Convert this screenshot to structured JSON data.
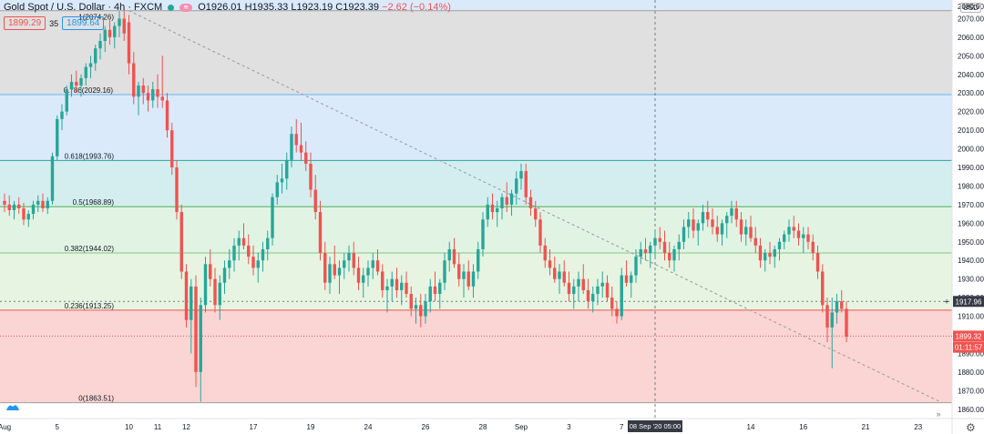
{
  "header": {
    "symbol": "Gold Spot / U.S. Dollar · 4h · FXCM",
    "ohlc": "O1926.01 H1935.33 L1923.19 C1923.39",
    "change": "−2.62 (−0.14%)",
    "bid": "1899.29",
    "spread": "35",
    "ask": "1899.64",
    "events_icon": "≋"
  },
  "currency": "USD",
  "chart_data": {
    "type": "candlestick",
    "ylim": [
      1855,
      2080
    ],
    "y_ticks": [
      2070,
      2060,
      2050,
      2040,
      2030,
      2020,
      2010,
      2000,
      1990,
      1980,
      1970,
      1960,
      1950,
      1940,
      1930,
      1920,
      1910,
      1900,
      1890,
      1880,
      1870,
      1860
    ],
    "y_tick_partial": "2080.00",
    "x_ticks": [
      {
        "label": "Aug",
        "i": 0
      },
      {
        "label": "5",
        "i": 11
      },
      {
        "label": "10",
        "i": 26
      },
      {
        "label": "11",
        "i": 32
      },
      {
        "label": "12",
        "i": 38
      },
      {
        "label": "17",
        "i": 52
      },
      {
        "label": "19",
        "i": 64
      },
      {
        "label": "24",
        "i": 76
      },
      {
        "label": "26",
        "i": 88
      },
      {
        "label": "28",
        "i": 100
      },
      {
        "label": "Sep",
        "i": 108
      },
      {
        "label": "3",
        "i": 118
      },
      {
        "label": "7",
        "i": 129
      },
      {
        "label": "14",
        "i": 156
      },
      {
        "label": "16",
        "i": 167
      },
      {
        "label": "21",
        "i": 180
      },
      {
        "label": "23",
        "i": 191
      }
    ],
    "crosshair_label": "08 Sep '20   05:00",
    "crosshair_i": 136,
    "fibonacci": {
      "high": 2074.26,
      "low": 1863.51,
      "levels": [
        {
          "ratio": "1",
          "price": 2074.26,
          "label": "1(2074.26)",
          "zone_color": "#e0e0e0",
          "line_color": "#9e9e9e"
        },
        {
          "ratio": "0.786",
          "price": 2029.16,
          "label": "0.786(2029.16)",
          "zone_color": "#dbeafb",
          "line_color": "#64b5f6"
        },
        {
          "ratio": "0.618",
          "price": 1993.76,
          "label": "0.618(1993.76)",
          "zone_color": "#d4eef0",
          "line_color": "#26a69a"
        },
        {
          "ratio": "0.5",
          "price": 1968.89,
          "label": "0.5(1968.89)",
          "zone_color": "#e1f4e4",
          "line_color": "#4caf50"
        },
        {
          "ratio": "0.382",
          "price": 1944.02,
          "label": "0.382(1944.02)",
          "zone_color": "#e6f4e1",
          "line_color": "#81c784"
        },
        {
          "ratio": "0.236",
          "price": 1913.25,
          "label": "0.236(1913.25)",
          "zone_color": "#fbd5d3",
          "line_color": "#ef5350"
        },
        {
          "ratio": "0",
          "price": 1863.51,
          "label": "0(1863.51)",
          "zone_color": "#fbd5d3",
          "line_color": "#9e9e9e"
        }
      ],
      "top_zone_color": "#dbeafb"
    },
    "trendline": {
      "from": {
        "i": 26,
        "price": 2074.26
      },
      "to": {
        "i": 196,
        "price": 1863.5
      }
    },
    "price_labels": [
      {
        "text": "1917.96",
        "price": 1917.96,
        "bg": "#363a45",
        "color": "#ffffff"
      },
      {
        "text": "1899.32",
        "price": 1899.32,
        "bg": "#ef5350",
        "color": "#ffffff"
      },
      {
        "text": "01:11:57",
        "price": 1893.3,
        "bg": "#ef5350",
        "color": "#ffffff"
      }
    ],
    "last_price": 1899.32,
    "candles": [
      [
        1972,
        1976,
        1966,
        1970
      ],
      [
        1970,
        1975,
        1964,
        1967
      ],
      [
        1967,
        1972,
        1962,
        1970
      ],
      [
        1970,
        1974,
        1965,
        1968
      ],
      [
        1968,
        1971,
        1959,
        1962
      ],
      [
        1962,
        1967,
        1958,
        1965
      ],
      [
        1965,
        1972,
        1962,
        1970
      ],
      [
        1970,
        1975,
        1966,
        1972
      ],
      [
        1972,
        1976,
        1966,
        1968
      ],
      [
        1968,
        1974,
        1965,
        1972
      ],
      [
        1972,
        1998,
        1970,
        1996
      ],
      [
        1996,
        2018,
        1994,
        2016
      ],
      [
        2016,
        2024,
        2010,
        2020
      ],
      [
        2020,
        2034,
        2018,
        2032
      ],
      [
        2032,
        2040,
        2028,
        2036
      ],
      [
        2036,
        2042,
        2030,
        2034
      ],
      [
        2034,
        2040,
        2028,
        2038
      ],
      [
        2038,
        2046,
        2034,
        2044
      ],
      [
        2044,
        2050,
        2038,
        2046
      ],
      [
        2046,
        2056,
        2042,
        2054
      ],
      [
        2054,
        2062,
        2048,
        2058
      ],
      [
        2058,
        2066,
        2052,
        2064
      ],
      [
        2064,
        2070,
        2056,
        2060
      ],
      [
        2060,
        2068,
        2054,
        2066
      ],
      [
        2066,
        2074,
        2060,
        2070
      ],
      [
        2070,
        2075,
        2058,
        2062
      ],
      [
        2068,
        2072,
        2040,
        2046
      ],
      [
        2046,
        2052,
        2024,
        2028
      ],
      [
        2028,
        2036,
        2018,
        2034
      ],
      [
        2034,
        2038,
        2024,
        2030
      ],
      [
        2030,
        2034,
        2020,
        2026
      ],
      [
        2026,
        2036,
        2022,
        2032
      ],
      [
        2032,
        2040,
        2022,
        2028
      ],
      [
        2028,
        2050,
        2022,
        2026
      ],
      [
        2026,
        2030,
        2006,
        2010
      ],
      [
        2010,
        2014,
        1986,
        1990
      ],
      [
        1990,
        1994,
        1962,
        1966
      ],
      [
        1966,
        1970,
        1930,
        1934
      ],
      [
        1934,
        1938,
        1904,
        1908
      ],
      [
        1908,
        1930,
        1890,
        1926
      ],
      [
        1926,
        1932,
        1872,
        1880
      ],
      [
        1880,
        1920,
        1864,
        1916
      ],
      [
        1916,
        1942,
        1912,
        1938
      ],
      [
        1938,
        1946,
        1926,
        1930
      ],
      [
        1930,
        1936,
        1912,
        1916
      ],
      [
        1916,
        1932,
        1908,
        1928
      ],
      [
        1928,
        1940,
        1922,
        1936
      ],
      [
        1936,
        1946,
        1930,
        1940
      ],
      [
        1940,
        1952,
        1934,
        1948
      ],
      [
        1948,
        1956,
        1940,
        1952
      ],
      [
        1952,
        1960,
        1946,
        1948
      ],
      [
        1948,
        1954,
        1938,
        1942
      ],
      [
        1942,
        1948,
        1932,
        1936
      ],
      [
        1936,
        1944,
        1928,
        1940
      ],
      [
        1940,
        1950,
        1934,
        1946
      ],
      [
        1946,
        1956,
        1940,
        1952
      ],
      [
        1952,
        1976,
        1948,
        1974
      ],
      [
        1974,
        1986,
        1970,
        1982
      ],
      [
        1982,
        1992,
        1976,
        1984
      ],
      [
        1984,
        1998,
        1978,
        1994
      ],
      [
        1994,
        2012,
        1990,
        2008
      ],
      [
        2008,
        2016,
        1998,
        2002
      ],
      [
        2002,
        2014,
        1994,
        1998
      ],
      [
        1998,
        2004,
        1988,
        1992
      ],
      [
        1992,
        1998,
        1974,
        1978
      ],
      [
        1978,
        1986,
        1962,
        1966
      ],
      [
        1966,
        1972,
        1940,
        1944
      ],
      [
        1944,
        1950,
        1924,
        1928
      ],
      [
        1928,
        1942,
        1922,
        1938
      ],
      [
        1938,
        1948,
        1930,
        1932
      ],
      [
        1932,
        1940,
        1922,
        1936
      ],
      [
        1936,
        1944,
        1930,
        1940
      ],
      [
        1940,
        1948,
        1934,
        1944
      ],
      [
        1944,
        1950,
        1932,
        1936
      ],
      [
        1936,
        1942,
        1924,
        1928
      ],
      [
        1928,
        1936,
        1920,
        1932
      ],
      [
        1932,
        1940,
        1926,
        1936
      ],
      [
        1936,
        1944,
        1930,
        1940
      ],
      [
        1940,
        1946,
        1932,
        1934
      ],
      [
        1934,
        1938,
        1920,
        1924
      ],
      [
        1924,
        1930,
        1912,
        1926
      ],
      [
        1926,
        1934,
        1918,
        1930
      ],
      [
        1930,
        1936,
        1920,
        1924
      ],
      [
        1924,
        1932,
        1916,
        1928
      ],
      [
        1928,
        1934,
        1920,
        1922
      ],
      [
        1922,
        1926,
        1910,
        1914
      ],
      [
        1914,
        1920,
        1906,
        1916
      ],
      [
        1916,
        1922,
        1904,
        1910
      ],
      [
        1910,
        1922,
        1906,
        1918
      ],
      [
        1918,
        1930,
        1912,
        1926
      ],
      [
        1926,
        1934,
        1918,
        1922
      ],
      [
        1922,
        1930,
        1914,
        1928
      ],
      [
        1928,
        1944,
        1924,
        1940
      ],
      [
        1940,
        1950,
        1934,
        1946
      ],
      [
        1946,
        1952,
        1936,
        1938
      ],
      [
        1938,
        1944,
        1926,
        1930
      ],
      [
        1930,
        1938,
        1920,
        1934
      ],
      [
        1934,
        1940,
        1924,
        1926
      ],
      [
        1926,
        1938,
        1920,
        1934
      ],
      [
        1934,
        1950,
        1930,
        1946
      ],
      [
        1946,
        1966,
        1942,
        1962
      ],
      [
        1962,
        1974,
        1958,
        1970
      ],
      [
        1970,
        1976,
        1962,
        1966
      ],
      [
        1966,
        1972,
        1958,
        1968
      ],
      [
        1968,
        1976,
        1962,
        1974
      ],
      [
        1974,
        1982,
        1966,
        1970
      ],
      [
        1970,
        1978,
        1964,
        1976
      ],
      [
        1976,
        1988,
        1970,
        1984
      ],
      [
        1984,
        1992,
        1978,
        1988
      ],
      [
        1988,
        1992,
        1970,
        1974
      ],
      [
        1974,
        1978,
        1964,
        1968
      ],
      [
        1968,
        1972,
        1958,
        1962
      ],
      [
        1962,
        1966,
        1944,
        1948
      ],
      [
        1948,
        1952,
        1936,
        1940
      ],
      [
        1940,
        1946,
        1932,
        1936
      ],
      [
        1936,
        1942,
        1928,
        1930
      ],
      [
        1930,
        1938,
        1922,
        1934
      ],
      [
        1934,
        1940,
        1926,
        1928
      ],
      [
        1928,
        1934,
        1918,
        1922
      ],
      [
        1922,
        1930,
        1914,
        1926
      ],
      [
        1926,
        1934,
        1918,
        1930
      ],
      [
        1930,
        1938,
        1922,
        1924
      ],
      [
        1924,
        1930,
        1914,
        1918
      ],
      [
        1918,
        1926,
        1912,
        1922
      ],
      [
        1922,
        1930,
        1916,
        1926
      ],
      [
        1926,
        1934,
        1920,
        1928
      ],
      [
        1928,
        1932,
        1918,
        1920
      ],
      [
        1920,
        1926,
        1910,
        1914
      ],
      [
        1914,
        1918,
        1906,
        1910
      ],
      [
        1910,
        1936,
        1908,
        1932
      ],
      [
        1932,
        1940,
        1926,
        1928
      ],
      [
        1928,
        1934,
        1920,
        1932
      ],
      [
        1932,
        1946,
        1928,
        1942
      ],
      [
        1942,
        1950,
        1938,
        1946
      ],
      [
        1946,
        1952,
        1940,
        1944
      ],
      [
        1944,
        1950,
        1936,
        1948
      ],
      [
        1948,
        1956,
        1942,
        1952
      ],
      [
        1952,
        1958,
        1946,
        1950
      ],
      [
        1950,
        1956,
        1940,
        1944
      ],
      [
        1944,
        1950,
        1936,
        1940
      ],
      [
        1940,
        1948,
        1934,
        1946
      ],
      [
        1946,
        1954,
        1940,
        1950
      ],
      [
        1950,
        1962,
        1946,
        1958
      ],
      [
        1958,
        1966,
        1952,
        1962
      ],
      [
        1962,
        1968,
        1952,
        1956
      ],
      [
        1956,
        1962,
        1948,
        1960
      ],
      [
        1960,
        1970,
        1956,
        1966
      ],
      [
        1966,
        1972,
        1958,
        1962
      ],
      [
        1962,
        1968,
        1954,
        1958
      ],
      [
        1958,
        1964,
        1950,
        1954
      ],
      [
        1954,
        1962,
        1948,
        1960
      ],
      [
        1960,
        1966,
        1952,
        1964
      ],
      [
        1964,
        1972,
        1960,
        1968
      ],
      [
        1968,
        1972,
        1958,
        1962
      ],
      [
        1962,
        1966,
        1950,
        1954
      ],
      [
        1954,
        1962,
        1948,
        1958
      ],
      [
        1958,
        1964,
        1950,
        1952
      ],
      [
        1952,
        1958,
        1944,
        1948
      ],
      [
        1948,
        1952,
        1936,
        1940
      ],
      [
        1940,
        1946,
        1934,
        1944
      ],
      [
        1944,
        1950,
        1938,
        1942
      ],
      [
        1942,
        1948,
        1936,
        1946
      ],
      [
        1946,
        1952,
        1940,
        1950
      ],
      [
        1950,
        1956,
        1946,
        1954
      ],
      [
        1954,
        1962,
        1950,
        1958
      ],
      [
        1958,
        1964,
        1952,
        1956
      ],
      [
        1956,
        1960,
        1948,
        1952
      ],
      [
        1952,
        1958,
        1944,
        1954
      ],
      [
        1954,
        1958,
        1946,
        1950
      ],
      [
        1950,
        1954,
        1940,
        1944
      ],
      [
        1944,
        1948,
        1930,
        1934
      ],
      [
        1934,
        1938,
        1912,
        1916
      ],
      [
        1916,
        1920,
        1896,
        1904
      ],
      [
        1904,
        1920,
        1882,
        1912
      ],
      [
        1912,
        1922,
        1906,
        1918
      ],
      [
        1918,
        1924,
        1912,
        1914
      ],
      [
        1914,
        1918,
        1896,
        1899
      ]
    ]
  }
}
